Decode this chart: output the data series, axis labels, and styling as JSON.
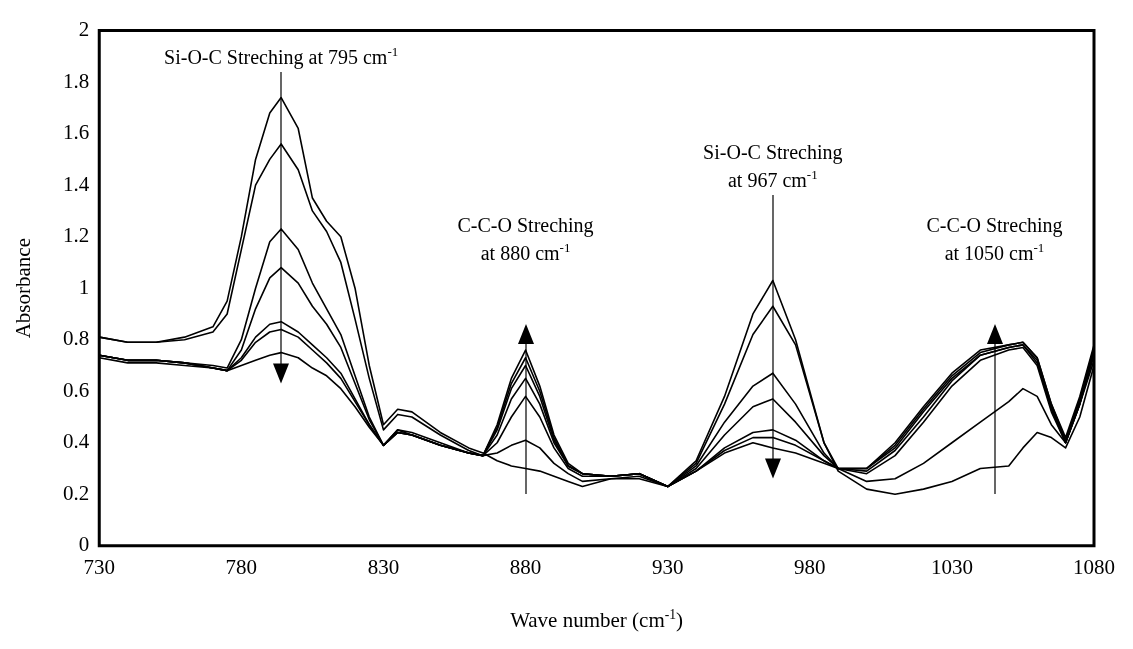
{
  "chart_data": {
    "type": "line",
    "xlabel": "Wave number (cm$^{-1}$)",
    "ylabel": "Absorbance",
    "xlim": [
      730,
      1080
    ],
    "ylim": [
      0,
      2
    ],
    "xticks": [
      730,
      780,
      830,
      880,
      930,
      980,
      1030,
      1080
    ],
    "yticks": [
      0,
      0.2,
      0.4,
      0.6,
      0.8,
      1,
      1.2,
      1.4,
      1.6,
      1.8,
      2
    ],
    "grid": false,
    "legend": false,
    "marker": "none",
    "x": [
      730,
      740,
      750,
      760,
      770,
      775,
      780,
      785,
      790,
      794,
      800,
      805,
      810,
      815,
      820,
      825,
      830,
      835,
      840,
      850,
      860,
      865,
      870,
      875,
      880,
      885,
      890,
      895,
      900,
      910,
      920,
      930,
      940,
      950,
      960,
      967,
      975,
      985,
      990,
      1000,
      1010,
      1020,
      1030,
      1040,
      1050,
      1055,
      1060,
      1065,
      1070,
      1075,
      1080
    ],
    "series": [
      {
        "color": "#000000",
        "values": [
          0.81,
          0.79,
          0.79,
          0.81,
          0.85,
          0.95,
          1.2,
          1.5,
          1.68,
          1.74,
          1.62,
          1.35,
          1.26,
          1.2,
          1.0,
          0.7,
          0.47,
          0.53,
          0.52,
          0.44,
          0.38,
          0.36,
          0.33,
          0.31,
          0.3,
          0.29,
          0.27,
          0.25,
          0.23,
          0.26,
          0.26,
          0.23,
          0.33,
          0.58,
          0.9,
          1.03,
          0.8,
          0.4,
          0.29,
          0.22,
          0.2,
          0.22,
          0.25,
          0.3,
          0.31,
          0.38,
          0.44,
          0.42,
          0.38,
          0.5,
          0.7
        ]
      },
      {
        "color": "#000000",
        "values": [
          0.81,
          0.79,
          0.79,
          0.8,
          0.83,
          0.9,
          1.15,
          1.4,
          1.5,
          1.56,
          1.46,
          1.3,
          1.22,
          1.1,
          0.88,
          0.65,
          0.45,
          0.51,
          0.5,
          0.43,
          0.37,
          0.35,
          0.36,
          0.39,
          0.41,
          0.38,
          0.32,
          0.28,
          0.25,
          0.26,
          0.27,
          0.23,
          0.32,
          0.55,
          0.82,
          0.93,
          0.78,
          0.4,
          0.3,
          0.25,
          0.26,
          0.32,
          0.4,
          0.48,
          0.56,
          0.61,
          0.58,
          0.47,
          0.4,
          0.55,
          0.72
        ]
      },
      {
        "color": "#000000",
        "values": [
          0.74,
          0.72,
          0.72,
          0.71,
          0.7,
          0.69,
          0.8,
          1.0,
          1.18,
          1.23,
          1.15,
          1.02,
          0.92,
          0.82,
          0.66,
          0.5,
          0.39,
          0.45,
          0.44,
          0.4,
          0.36,
          0.35,
          0.4,
          0.5,
          0.58,
          0.5,
          0.38,
          0.3,
          0.27,
          0.27,
          0.28,
          0.23,
          0.31,
          0.48,
          0.62,
          0.67,
          0.55,
          0.36,
          0.3,
          0.28,
          0.35,
          0.48,
          0.62,
          0.72,
          0.76,
          0.77,
          0.7,
          0.52,
          0.4,
          0.55,
          0.74
        ]
      },
      {
        "color": "#000000",
        "values": [
          0.74,
          0.72,
          0.72,
          0.71,
          0.69,
          0.68,
          0.76,
          0.92,
          1.04,
          1.08,
          1.02,
          0.93,
          0.86,
          0.77,
          0.63,
          0.49,
          0.39,
          0.45,
          0.43,
          0.39,
          0.36,
          0.35,
          0.43,
          0.57,
          0.65,
          0.55,
          0.4,
          0.31,
          0.28,
          0.27,
          0.28,
          0.23,
          0.3,
          0.43,
          0.54,
          0.57,
          0.48,
          0.35,
          0.3,
          0.29,
          0.37,
          0.5,
          0.64,
          0.74,
          0.77,
          0.78,
          0.71,
          0.53,
          0.4,
          0.55,
          0.75
        ]
      },
      {
        "color": "#000000",
        "values": [
          0.74,
          0.72,
          0.72,
          0.71,
          0.69,
          0.68,
          0.73,
          0.81,
          0.86,
          0.87,
          0.83,
          0.78,
          0.73,
          0.67,
          0.57,
          0.47,
          0.39,
          0.44,
          0.43,
          0.39,
          0.36,
          0.35,
          0.45,
          0.61,
          0.7,
          0.58,
          0.41,
          0.31,
          0.28,
          0.27,
          0.28,
          0.23,
          0.29,
          0.38,
          0.44,
          0.45,
          0.41,
          0.33,
          0.3,
          0.3,
          0.38,
          0.52,
          0.65,
          0.74,
          0.77,
          0.78,
          0.72,
          0.54,
          0.4,
          0.56,
          0.76
        ]
      },
      {
        "color": "#000000",
        "values": [
          0.74,
          0.72,
          0.72,
          0.71,
          0.69,
          0.68,
          0.72,
          0.79,
          0.83,
          0.84,
          0.81,
          0.76,
          0.71,
          0.65,
          0.56,
          0.47,
          0.39,
          0.44,
          0.43,
          0.39,
          0.36,
          0.35,
          0.46,
          0.63,
          0.73,
          0.6,
          0.42,
          0.31,
          0.28,
          0.27,
          0.28,
          0.23,
          0.29,
          0.37,
          0.42,
          0.42,
          0.39,
          0.33,
          0.3,
          0.3,
          0.39,
          0.53,
          0.66,
          0.75,
          0.78,
          0.79,
          0.73,
          0.55,
          0.41,
          0.57,
          0.77
        ]
      },
      {
        "color": "#000000",
        "values": [
          0.73,
          0.71,
          0.71,
          0.7,
          0.69,
          0.68,
          0.7,
          0.72,
          0.74,
          0.75,
          0.73,
          0.69,
          0.66,
          0.61,
          0.54,
          0.46,
          0.39,
          0.44,
          0.43,
          0.39,
          0.36,
          0.35,
          0.47,
          0.65,
          0.76,
          0.62,
          0.43,
          0.32,
          0.28,
          0.27,
          0.28,
          0.23,
          0.29,
          0.36,
          0.4,
          0.38,
          0.36,
          0.32,
          0.3,
          0.3,
          0.4,
          0.54,
          0.67,
          0.76,
          0.78,
          0.79,
          0.73,
          0.55,
          0.42,
          0.58,
          0.78
        ]
      }
    ],
    "annotations": [
      "Si-O-C Streching at 795 cm$^{-1}$",
      "C-C-O Streching\nat 880 cm$^{-1}$",
      "Si-O-C Streching\nat 967 cm$^{-1}$",
      "C-C-O Streching\nat 1050 cm$^{-1}$"
    ]
  }
}
